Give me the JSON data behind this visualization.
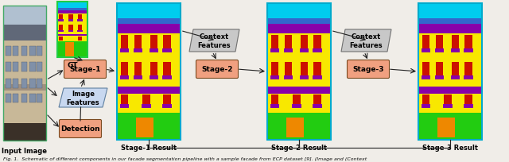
{
  "bg_color": "#f0ede8",
  "caption": "Fig. 1.  Schematic of different components in our facade segmentation pipeline with a sample facade from ECP dataset [9]. (Image and (Context",
  "diagram": {
    "input_image_label": "Input Image",
    "gt_label": "GT",
    "stage1_box_label": "Stage-1",
    "stage2_box_label": "Stage-2",
    "stage3_box_label": "Stage-3",
    "image_features_label": "Image\nFeatures",
    "detection_label": "Detection",
    "context_features_label": "Context\nFeatures",
    "stage1_result_label": "Stage-1 Result",
    "stage2_result_label": "Stage-2 Result",
    "stage3_result_label": "Stage-3 Result",
    "box_fill_salmon": "#f0a080",
    "box_edge_dark": "#7a4a20",
    "imgfeat_fill": "#c8d8f0",
    "imgfeat_edge": "#6080a0",
    "result_frame_color": "#00aacc",
    "gt_frame_color": "#22cc44",
    "context_box_fill": "#c8c8c8",
    "context_box_edge": "#707070",
    "arrow_color": "#222222",
    "photo_frame": "#44aa66"
  }
}
